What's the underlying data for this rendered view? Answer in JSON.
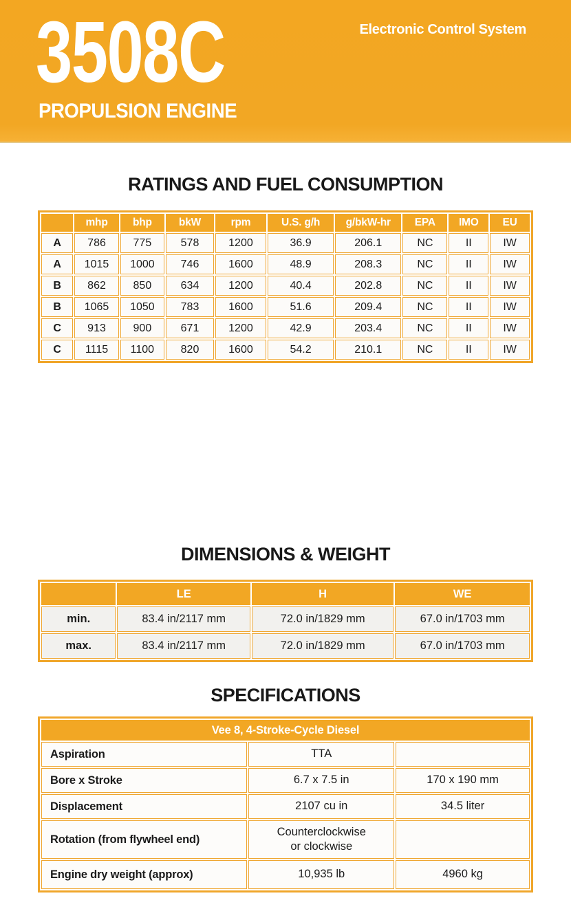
{
  "header": {
    "model": "3508C",
    "subtitle": "PROPULSION ENGINE",
    "tagline": "Electronic Control System"
  },
  "ratings": {
    "title": "RATINGS AND FUEL CONSUMPTION",
    "columns": [
      "",
      "mhp",
      "bhp",
      "bkW",
      "rpm",
      "U.S. g/h",
      "g/bkW-hr",
      "EPA",
      "IMO",
      "EU"
    ],
    "rows": [
      [
        "A",
        "786",
        "775",
        "578",
        "1200",
        "36.9",
        "206.1",
        "NC",
        "II",
        "IW"
      ],
      [
        "A",
        "1015",
        "1000",
        "746",
        "1600",
        "48.9",
        "208.3",
        "NC",
        "II",
        "IW"
      ],
      [
        "B",
        "862",
        "850",
        "634",
        "1200",
        "40.4",
        "202.8",
        "NC",
        "II",
        "IW"
      ],
      [
        "B",
        "1065",
        "1050",
        "783",
        "1600",
        "51.6",
        "209.4",
        "NC",
        "II",
        "IW"
      ],
      [
        "C",
        "913",
        "900",
        "671",
        "1200",
        "42.9",
        "203.4",
        "NC",
        "II",
        "IW"
      ],
      [
        "C",
        "1115",
        "1100",
        "820",
        "1600",
        "54.2",
        "210.1",
        "NC",
        "II",
        "IW"
      ]
    ]
  },
  "dimensions": {
    "title": "DIMENSIONS & WEIGHT",
    "columns": [
      "",
      "LE",
      "H",
      "WE"
    ],
    "rows": [
      [
        "min.",
        "83.4 in/2117 mm",
        "72.0 in/1829 mm",
        "67.0 in/1703 mm"
      ],
      [
        "max.",
        "83.4 in/2117 mm",
        "72.0 in/1829 mm",
        "67.0 in/1703 mm"
      ]
    ]
  },
  "specifications": {
    "title": "SPECIFICATIONS",
    "band": "Vee 8, 4-Stroke-Cycle Diesel",
    "rows": [
      {
        "label": "Aspiration",
        "value1": "TTA",
        "value2": ""
      },
      {
        "label": "Bore x Stroke",
        "value1": "6.7 x 7.5 in",
        "value2": "170 x 190 mm"
      },
      {
        "label": "Displacement",
        "value1": "2107 cu in",
        "value2": "34.5 liter"
      },
      {
        "label": "Rotation (from flywheel end)",
        "value1": "Counterclockwise or clockwise",
        "value2": ""
      },
      {
        "label": "Engine dry weight (approx)",
        "value1": "10,935 lb",
        "value2": "4960 kg"
      }
    ]
  },
  "colors": {
    "brand_yellow": "#F2A724",
    "table_border_yellow": "#F0A62A",
    "title_text": "#191919",
    "header_text": "#FFFFFF"
  }
}
